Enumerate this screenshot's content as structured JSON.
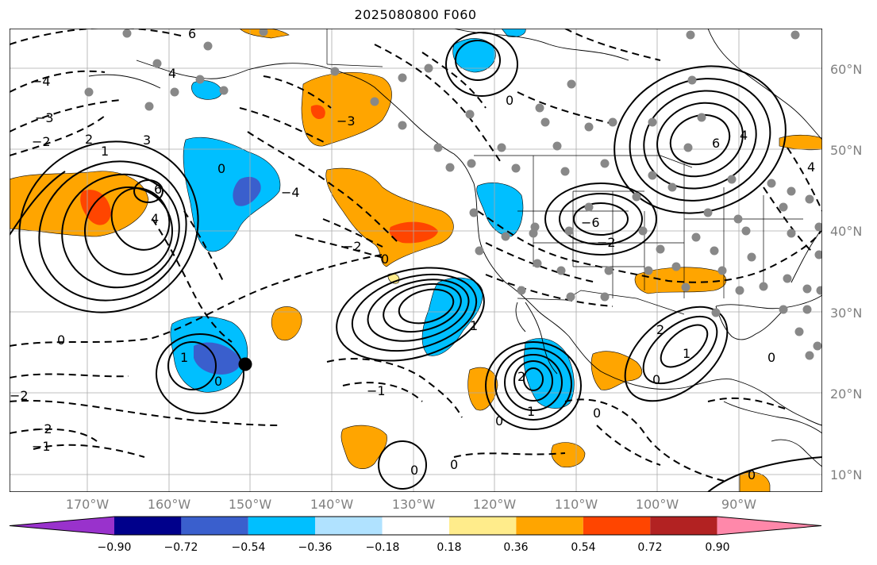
{
  "title": "2025080800 F060",
  "lat_labels": [
    {
      "text": "60°N",
      "y": 60
    },
    {
      "text": "50°N",
      "y": 50
    },
    {
      "text": "40°N",
      "y": 40
    },
    {
      "text": "30°N",
      "y": 30
    },
    {
      "text": "20°N",
      "y": 20
    },
    {
      "text": "10°N",
      "y": 10
    }
  ],
  "lon_labels": [
    {
      "text": "170°W",
      "x": -170
    },
    {
      "text": "160°W",
      "x": -160
    },
    {
      "text": "150°W",
      "x": -150
    },
    {
      "text": "140°W",
      "x": -140
    },
    {
      "text": "130°W",
      "x": -130
    },
    {
      "text": "120°W",
      "x": -120
    },
    {
      "text": "110°W",
      "x": -110
    },
    {
      "text": "100°W",
      "x": -100
    },
    {
      "text": "90°W",
      "x": -90
    }
  ],
  "colorbar": {
    "colors": [
      "#9932CC",
      "#00008B",
      "#3A5FCD",
      "#00BFFF",
      "#B0E2FF",
      "#FFFFFF",
      "#FFEC8B",
      "#FFA500",
      "#FF4500",
      "#B22222",
      "#FF88AA"
    ],
    "ticks": [
      "−0.90",
      "−0.72",
      "−0.54",
      "−0.36",
      "−0.18",
      "0.18",
      "0.36",
      "0.54",
      "0.72",
      "0.90"
    ]
  },
  "contour_labels": [
    "6",
    "4",
    "3",
    "2",
    "1",
    "0",
    "−1",
    "−2",
    "−3",
    "−4",
    "−6"
  ],
  "marker": {
    "label": "storm-position",
    "lon": -150.2,
    "lat": 23.6
  }
}
